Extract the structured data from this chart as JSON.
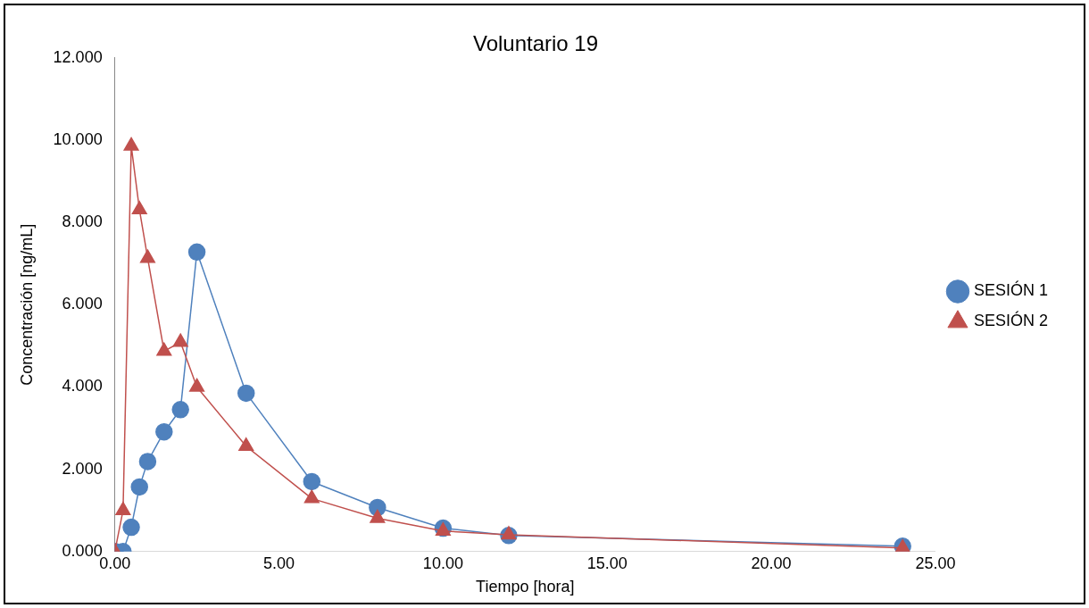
{
  "chart_data": {
    "type": "line",
    "title": "Voluntario 19",
    "xlabel": "Tiempo [hora]",
    "ylabel": "Concentración [ng/mL]",
    "xlim": [
      0,
      25
    ],
    "xticks": [
      {
        "value": 0,
        "label": "0.00"
      },
      {
        "value": 5,
        "label": "5.00"
      },
      {
        "value": 10,
        "label": "10.00"
      },
      {
        "value": 15,
        "label": "15.00"
      },
      {
        "value": 20,
        "label": "20.00"
      },
      {
        "value": 25,
        "label": "25.00"
      }
    ],
    "ylim": [
      0,
      12
    ],
    "yticks": [
      {
        "value": 0,
        "label": "0.000"
      },
      {
        "value": 2,
        "label": "2.000"
      },
      {
        "value": 4,
        "label": "4.000"
      },
      {
        "value": 6,
        "label": "6.000"
      },
      {
        "value": 8,
        "label": "8.000"
      },
      {
        "value": 10,
        "label": "10.000"
      },
      {
        "value": 12,
        "label": "12.000"
      }
    ],
    "grid": false,
    "legend": "right",
    "line_style": "solid",
    "series": [
      {
        "name": "SESIÓN 1",
        "color": "#4f81bd",
        "marker": "circle",
        "x": [
          0,
          0.25,
          0.5,
          0.75,
          1,
          1.5,
          2,
          2.5,
          4,
          6,
          8,
          10,
          12,
          24
        ],
        "values": [
          0,
          0,
          0.59,
          1.57,
          2.19,
          2.91,
          3.45,
          7.28,
          3.85,
          1.7,
          1.07,
          0.57,
          0.39,
          0.13
        ]
      },
      {
        "name": "SESIÓN 2",
        "color": "#c0504d",
        "marker": "triangle",
        "x": [
          0,
          0.25,
          0.5,
          0.75,
          1,
          1.5,
          2,
          2.5,
          4,
          6,
          8,
          10,
          12,
          24
        ],
        "values": [
          0,
          1,
          9.86,
          8.31,
          7.13,
          4.87,
          5.09,
          4,
          2.56,
          1.29,
          0.81,
          0.5,
          0.41,
          0.09
        ]
      }
    ]
  }
}
